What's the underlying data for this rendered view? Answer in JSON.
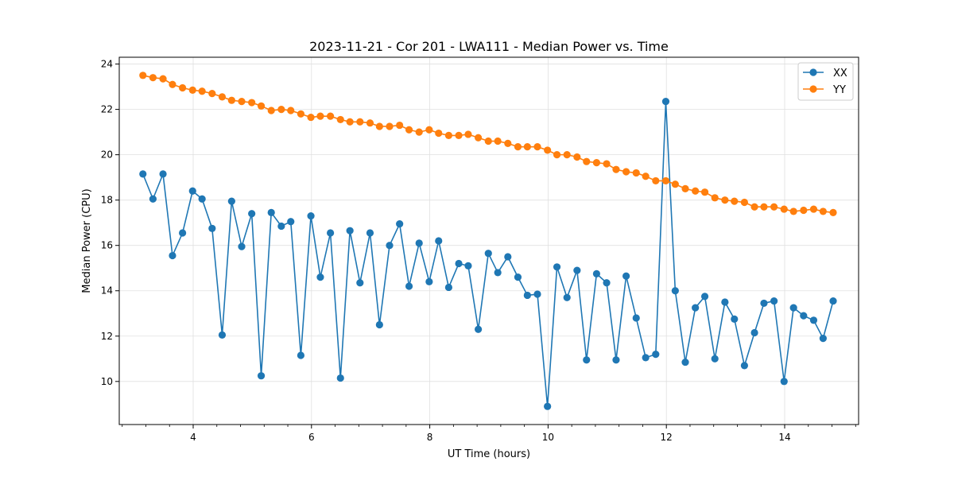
{
  "chart_data": {
    "type": "line",
    "title": "2023-11-21 - Cor 201 - LWA111 - Median Power vs. Time",
    "xlabel": "UT Time (hours)",
    "ylabel": "Median Power (CPU)",
    "xlim": [
      2.75,
      15.25
    ],
    "ylim": [
      8.1,
      24.3
    ],
    "xticks": [
      4,
      6,
      8,
      10,
      12,
      14
    ],
    "xtick_labels": [
      "4",
      "6",
      "8",
      "10",
      "12",
      "14"
    ],
    "yticks": [
      10,
      12,
      14,
      16,
      18,
      20,
      22,
      24
    ],
    "ytick_labels": [
      "10",
      "12",
      "14",
      "16",
      "18",
      "20",
      "22",
      "24"
    ],
    "grid": true,
    "legend_position": "top-right",
    "x": [
      3.15,
      3.32,
      3.49,
      3.65,
      3.82,
      3.99,
      4.15,
      4.32,
      4.49,
      4.65,
      4.82,
      4.99,
      5.15,
      5.32,
      5.49,
      5.65,
      5.82,
      5.99,
      6.15,
      6.32,
      6.49,
      6.65,
      6.82,
      6.99,
      7.15,
      7.32,
      7.49,
      7.65,
      7.82,
      7.99,
      8.15,
      8.32,
      8.49,
      8.65,
      8.82,
      8.99,
      9.15,
      9.32,
      9.49,
      9.65,
      9.82,
      9.99,
      10.15,
      10.32,
      10.49,
      10.65,
      10.82,
      10.99,
      11.15,
      11.32,
      11.49,
      11.65,
      11.82,
      11.99,
      12.15,
      12.32,
      12.49,
      12.65,
      12.82,
      12.99,
      13.15,
      13.32,
      13.49,
      13.65,
      13.82,
      13.99,
      14.15,
      14.32,
      14.49,
      14.65,
      14.82
    ],
    "series": [
      {
        "name": "XX",
        "color": "#1f77b4",
        "values": [
          19.15,
          18.05,
          19.15,
          15.55,
          16.55,
          18.4,
          18.05,
          16.75,
          12.05,
          17.95,
          15.95,
          17.4,
          10.25,
          17.45,
          16.85,
          17.05,
          11.15,
          17.3,
          14.6,
          16.55,
          10.15,
          16.65,
          14.35,
          16.55,
          12.5,
          16.0,
          16.95,
          14.2,
          16.1,
          14.4,
          16.2,
          14.15,
          15.2,
          15.1,
          12.3,
          15.65,
          14.8,
          15.5,
          14.6,
          13.8,
          13.85,
          8.9,
          15.05,
          13.7,
          14.9,
          10.95,
          14.75,
          14.35,
          10.95,
          14.65,
          12.8,
          11.05,
          11.2,
          22.35,
          14.0,
          10.85,
          13.25,
          13.75,
          11.0,
          13.5,
          12.75,
          10.7,
          12.15,
          13.45,
          13.55,
          10.0,
          13.25,
          12.9,
          12.7,
          11.9,
          13.55
        ]
      },
      {
        "name": "YY",
        "color": "#ff7f0e",
        "values": [
          23.5,
          23.4,
          23.35,
          23.1,
          22.95,
          22.85,
          22.8,
          22.7,
          22.55,
          22.4,
          22.35,
          22.3,
          22.15,
          21.95,
          22.0,
          21.95,
          21.8,
          21.65,
          21.7,
          21.7,
          21.55,
          21.45,
          21.45,
          21.4,
          21.25,
          21.25,
          21.3,
          21.1,
          21.0,
          21.1,
          20.95,
          20.85,
          20.85,
          20.9,
          20.75,
          20.6,
          20.6,
          20.5,
          20.35,
          20.35,
          20.35,
          20.2,
          20.0,
          20.0,
          19.9,
          19.7,
          19.65,
          19.6,
          19.35,
          19.25,
          19.2,
          19.05,
          18.85,
          18.85,
          18.7,
          18.5,
          18.4,
          18.35,
          18.1,
          18.0,
          17.95,
          17.9,
          17.7,
          17.7,
          17.7,
          17.6,
          17.5,
          17.55,
          17.6,
          17.5,
          17.45
        ]
      }
    ]
  }
}
